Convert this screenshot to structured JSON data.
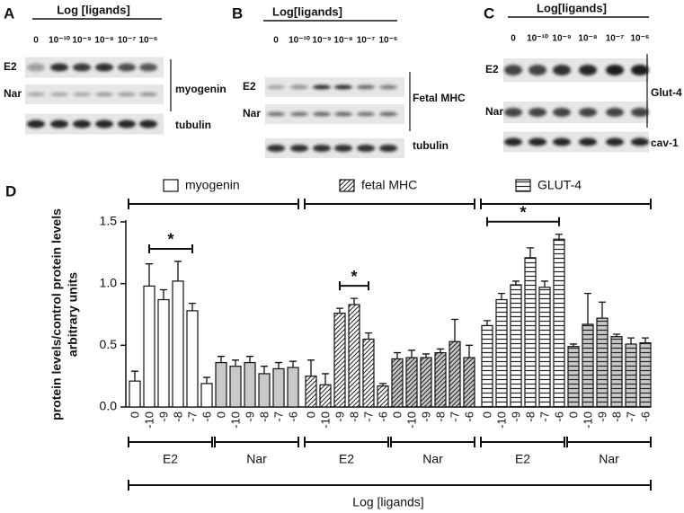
{
  "blots": [
    {
      "letter": "A",
      "header": "Log [ligands]",
      "lanes": [
        "0",
        "10⁻¹⁰",
        "10⁻⁹",
        "10⁻⁸",
        "10⁻⁷",
        "10⁻⁶"
      ],
      "rows": [
        "E2",
        "Nar"
      ],
      "target": "myogenin",
      "loading": "tubulin"
    },
    {
      "letter": "B",
      "header": "Log[ligands]",
      "lanes": [
        "0",
        "10⁻¹⁰",
        "10⁻⁹",
        "10⁻⁸",
        "10⁻⁷",
        "10⁻⁶"
      ],
      "rows": [
        "E2",
        "Nar"
      ],
      "target": "Fetal MHC",
      "loading": "tubulin"
    },
    {
      "letter": "C",
      "header": "Log[ligands]",
      "lanes": [
        "0",
        "10⁻¹⁰",
        "10⁻⁹",
        "10⁻⁸",
        "10⁻⁷",
        "10⁻⁶"
      ],
      "rows": [
        "E2",
        "Nar"
      ],
      "target": "Glut-4",
      "loading": "cav-1"
    }
  ],
  "chart_data": {
    "type": "bar",
    "panel": "D",
    "y_label": [
      "protein levels/control protein levels",
      "arbitrary units"
    ],
    "ylim": [
      0,
      1.5
    ],
    "yticks": [
      {
        "value": 0,
        "label": "0.0"
      },
      {
        "value": 0.5,
        "label": "0.5"
      },
      {
        "value": 1,
        "label": "1.0"
      },
      {
        "value": 1.5,
        "label": "1.5"
      }
    ],
    "categories": [
      "0",
      "-10",
      "-9",
      "-8",
      "-7",
      "-6",
      "0",
      "-10",
      "-9",
      "-8",
      "-7",
      "-6"
    ],
    "subgroups": [
      "E2",
      "Nar"
    ],
    "subgroup_fills": [
      "#ffffff",
      "#c8c8c8"
    ],
    "x_label": "Log [ligands]",
    "series": [
      {
        "name": "myogenin",
        "pattern": "none",
        "values": [
          0.21,
          0.98,
          0.87,
          1.02,
          0.78,
          0.19,
          0.36,
          0.33,
          0.36,
          0.27,
          0.31,
          0.32
        ],
        "errors": [
          0.08,
          0.18,
          0.08,
          0.16,
          0.06,
          0.05,
          0.05,
          0.05,
          0.05,
          0.06,
          0.05,
          0.05
        ],
        "significance": {
          "from": 1,
          "to": 4,
          "label": "*"
        }
      },
      {
        "name": "fetal MHC",
        "pattern": "diagonal",
        "values": [
          0.25,
          0.18,
          0.76,
          0.83,
          0.55,
          0.17,
          0.39,
          0.4,
          0.4,
          0.44,
          0.53,
          0.4
        ],
        "errors": [
          0.13,
          0.09,
          0.04,
          0.05,
          0.05,
          0.02,
          0.05,
          0.06,
          0.03,
          0.03,
          0.18,
          0.1
        ],
        "significance": {
          "from": 2,
          "to": 4,
          "label": "*"
        }
      },
      {
        "name": "GLUT-4",
        "pattern": "horizontal",
        "values": [
          0.66,
          0.87,
          0.99,
          1.21,
          0.97,
          1.36,
          0.49,
          0.67,
          0.72,
          0.57,
          0.51,
          0.52
        ],
        "errors": [
          0.04,
          0.05,
          0.03,
          0.08,
          0.05,
          0.04,
          0.02,
          0.25,
          0.13,
          0.02,
          0.05,
          0.04
        ],
        "significance": {
          "from": 0,
          "to": 5,
          "label": "*"
        }
      }
    ]
  }
}
